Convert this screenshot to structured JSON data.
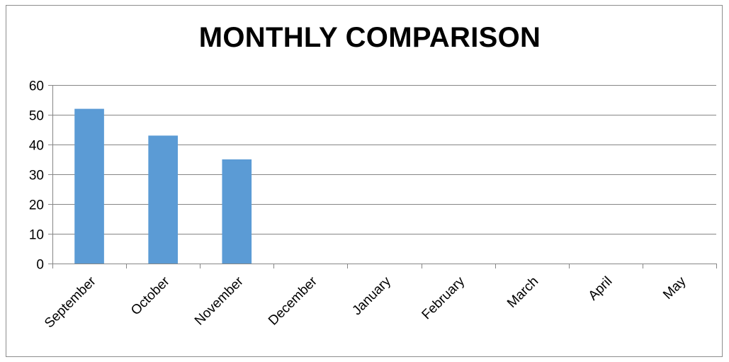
{
  "chart_data": {
    "type": "bar",
    "title": "MONTHLY COMPARISON",
    "categories": [
      "September",
      "October",
      "November",
      "December",
      "January",
      "February",
      "March",
      "April",
      "May"
    ],
    "values": [
      52,
      43,
      35,
      null,
      null,
      null,
      null,
      null,
      null
    ],
    "yticks": [
      "0",
      "10",
      "20",
      "30",
      "40",
      "50",
      "60"
    ],
    "ylim": [
      0,
      60
    ],
    "xlabel": "",
    "ylabel": "",
    "grid": true,
    "legend": "none",
    "bar_color": "#5b9bd5",
    "grid_color": "#868686"
  }
}
